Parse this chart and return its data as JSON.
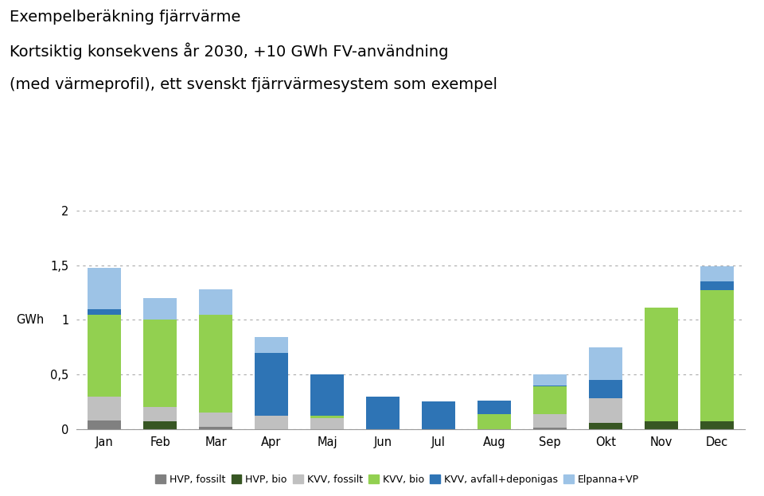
{
  "title_line1": "Exempelberäkning fjärrvärme",
  "title_line2": "Kortsiktig konsekvens år 2030, +10 GWh FV-användning",
  "title_line3": "(med värmeprofil), ett svenskt fjärrvärmesystem som exempel",
  "months": [
    "Jan",
    "Feb",
    "Mar",
    "Apr",
    "Maj",
    "Jun",
    "Jul",
    "Aug",
    "Sep",
    "Okt",
    "Nov",
    "Dec"
  ],
  "HVP_fossilt": [
    0.08,
    0.0,
    0.02,
    0.0,
    0.0,
    0.0,
    0.0,
    0.0,
    0.01,
    0.0,
    0.0,
    0.0
  ],
  "HVP_bio": [
    0.0,
    0.07,
    0.0,
    0.0,
    0.0,
    0.0,
    0.0,
    0.0,
    0.0,
    0.06,
    0.07,
    0.07
  ],
  "KVV_fossilt": [
    0.22,
    0.13,
    0.13,
    0.12,
    0.1,
    0.0,
    0.0,
    0.0,
    0.13,
    0.22,
    0.0,
    0.0
  ],
  "KVV_bio": [
    0.75,
    0.8,
    0.9,
    0.0,
    0.02,
    0.0,
    0.0,
    0.14,
    0.25,
    0.0,
    1.04,
    1.2
  ],
  "KVV_avfall": [
    0.05,
    0.0,
    0.0,
    0.58,
    0.38,
    0.3,
    0.25,
    0.12,
    0.01,
    0.17,
    0.0,
    0.08
  ],
  "Elpanna": [
    0.38,
    0.2,
    0.23,
    0.14,
    0.0,
    0.0,
    0.0,
    0.0,
    0.1,
    0.3,
    0.0,
    0.14
  ],
  "color_hvp_fossilt": "#808080",
  "color_hvp_bio": "#375623",
  "color_kvv_fossilt": "#c0c0c0",
  "color_kvv_bio": "#92d050",
  "color_kvv_avfall": "#2e74b5",
  "color_elpanna": "#9dc3e6",
  "label_hvp_fossilt": "HVP, fossilt",
  "label_hvp_bio": "HVP, bio",
  "label_kvv_fossilt": "KVV, fossilt",
  "label_kvv_bio": "KVV, bio",
  "label_kvv_avfall": "KVV, avfall+deponigas",
  "label_elpanna": "Elpanna+VP",
  "ylabel": "GWh",
  "ylim": [
    0,
    2.0
  ],
  "yticks": [
    0,
    0.5,
    1.0,
    1.5,
    2.0
  ],
  "ytick_labels": [
    "0",
    "0,5",
    "1",
    "1,5",
    "2"
  ]
}
